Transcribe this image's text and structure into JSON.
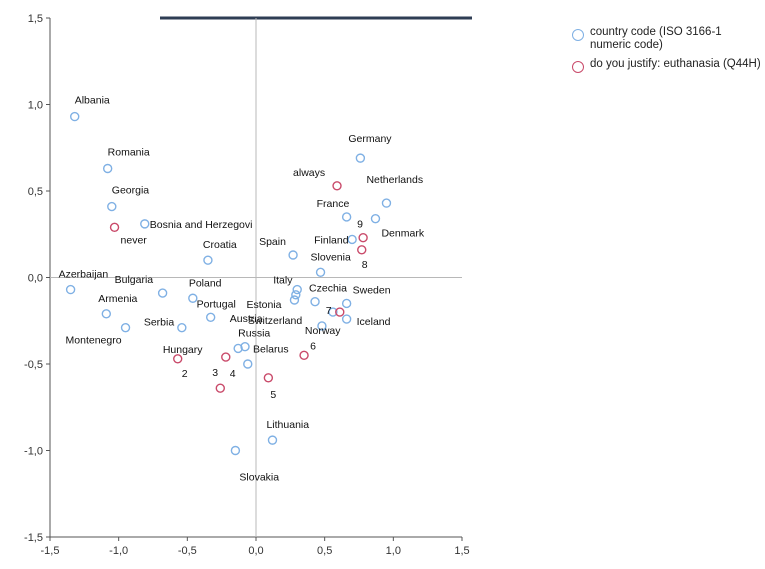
{
  "chart_data": {
    "type": "scatter",
    "xlim": [
      -1.5,
      1.5
    ],
    "ylim": [
      -1.5,
      1.5
    ],
    "xticks": [
      "-1,5",
      "-1,0",
      "-0,5",
      "0,0",
      "0,5",
      "1,0",
      "1,5"
    ],
    "yticks": [
      "1,5",
      "1,0",
      "0,5",
      "0,0",
      "-0,5",
      "-1,0",
      "-1,5"
    ],
    "grid": false,
    "reference_lines": {
      "x": 0,
      "y": 0
    },
    "legend_position": "top-right",
    "series": [
      {
        "name": "country code (ISO 3166-1 numeric code)",
        "color": "#7fb0e4",
        "points": [
          {
            "label": "Albania",
            "x": -1.32,
            "y": 0.93
          },
          {
            "label": "Romania",
            "x": -1.08,
            "y": 0.63
          },
          {
            "label": "Georgia",
            "x": -1.05,
            "y": 0.41
          },
          {
            "label": "Bosnia and Herzegovi",
            "x": -0.81,
            "y": 0.31
          },
          {
            "label": "Croatia",
            "x": -0.35,
            "y": 0.1
          },
          {
            "label": "Azerbaijan",
            "x": -1.35,
            "y": -0.07
          },
          {
            "label": "Bulgaria",
            "x": -0.68,
            "y": -0.09
          },
          {
            "label": "Armenia",
            "x": -1.09,
            "y": -0.21
          },
          {
            "label": "Montenegro",
            "x": -0.95,
            "y": -0.29
          },
          {
            "label": "Serbia",
            "x": -0.54,
            "y": -0.29
          },
          {
            "label": "Poland",
            "x": -0.46,
            "y": -0.12
          },
          {
            "label": "Portugal",
            "x": -0.33,
            "y": -0.23
          },
          {
            "label": "Russia",
            "x": -0.13,
            "y": -0.41
          },
          {
            "label": "Belarus",
            "x": -0.08,
            "y": -0.4
          },
          {
            "label": "Austria",
            "x": -0.06,
            "y": -0.5
          },
          {
            "label": "Spain",
            "x": 0.27,
            "y": 0.13
          },
          {
            "label": "Italy",
            "x": 0.3,
            "y": -0.07
          },
          {
            "label": "Estonia",
            "x": 0.28,
            "y": -0.13
          },
          {
            "label": "Czechia",
            "x": 0.43,
            "y": -0.14
          },
          {
            "label": "Switzerland",
            "x": 0.48,
            "y": -0.28
          },
          {
            "label": "Slovenia",
            "x": 0.47,
            "y": 0.03
          },
          {
            "label": "Germany",
            "x": 0.76,
            "y": 0.69
          },
          {
            "label": "Netherlands",
            "x": 0.95,
            "y": 0.43
          },
          {
            "label": "France",
            "x": 0.66,
            "y": 0.35
          },
          {
            "label": "Finland",
            "x": 0.7,
            "y": 0.22
          },
          {
            "label": "Denmark",
            "x": 0.87,
            "y": 0.34
          },
          {
            "label": "Sweden",
            "x": 0.66,
            "y": -0.15
          },
          {
            "label": "Iceland",
            "x": 0.66,
            "y": -0.24
          },
          {
            "label": "Norway",
            "x": 0.56,
            "y": -0.2
          },
          {
            "label": "Hungary",
            "x": 0.29,
            "y": -0.1
          },
          {
            "label": "Lithuania",
            "x": 0.12,
            "y": -0.94
          },
          {
            "label": "Slovakia",
            "x": -0.15,
            "y": -1.0
          }
        ]
      },
      {
        "name": "do you justify: euthanasia (Q44H)",
        "color": "#c94a6a",
        "points": [
          {
            "label": "always",
            "x": 0.59,
            "y": 0.53
          },
          {
            "label": "never",
            "x": -1.03,
            "y": 0.29
          },
          {
            "label": "2",
            "x": -0.57,
            "y": -0.47
          },
          {
            "label": "3",
            "x": -0.26,
            "y": -0.64
          },
          {
            "label": "4",
            "x": -0.22,
            "y": -0.46
          },
          {
            "label": "5",
            "x": 0.09,
            "y": -0.58
          },
          {
            "label": "6",
            "x": 0.35,
            "y": -0.45
          },
          {
            "label": "7",
            "x": 0.61,
            "y": -0.2
          },
          {
            "label": "8",
            "x": 0.77,
            "y": 0.16
          },
          {
            "label": "9",
            "x": 0.78,
            "y": 0.23
          }
        ]
      }
    ]
  },
  "legend": [
    {
      "label": "country code (ISO 3166-1 numeric code)",
      "color": "#7fb0e4"
    },
    {
      "label": "do you justify: euthanasia (Q44H)",
      "color": "#c94a6a"
    }
  ]
}
